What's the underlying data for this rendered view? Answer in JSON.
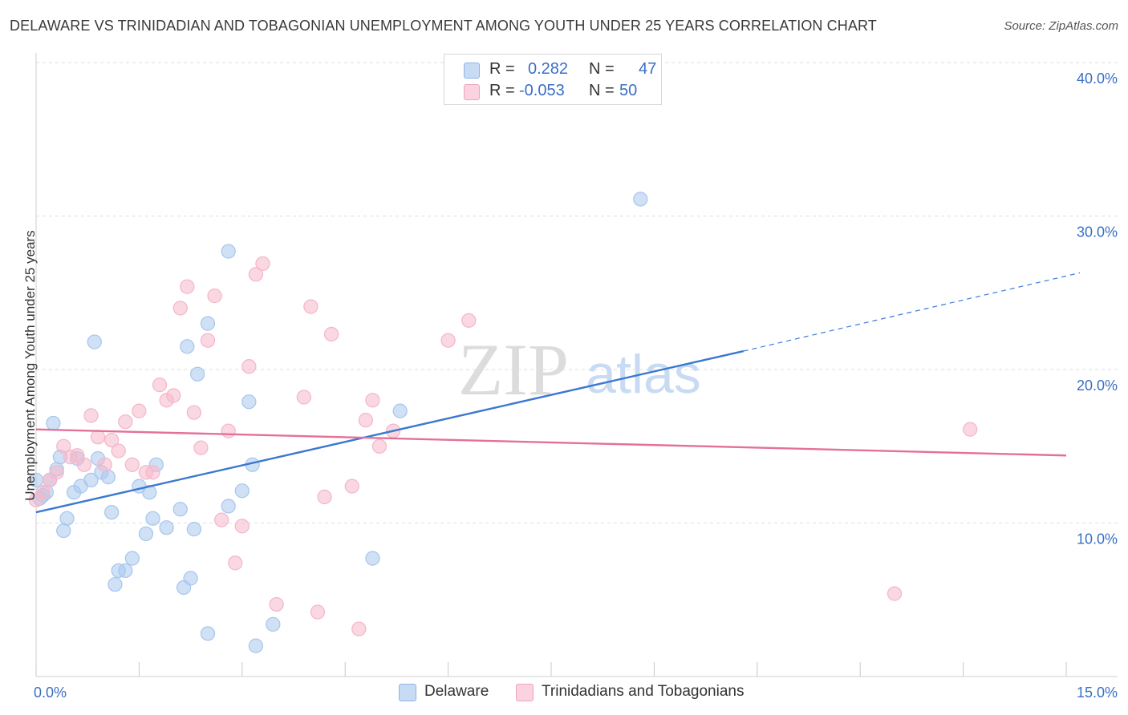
{
  "title": "DELAWARE VS TRINIDADIAN AND TOBAGONIAN UNEMPLOYMENT AMONG YOUTH UNDER 25 YEARS CORRELATION CHART",
  "source": "Source: ZipAtlas.com",
  "watermark": {
    "zip": "ZIP",
    "atlas": "atlas"
  },
  "legend": {
    "rows": [
      {
        "r_label": "R =",
        "r_value": "0.282",
        "n_label": "N =",
        "n_value": "47",
        "color": "#a9c8ee"
      },
      {
        "r_label": "R =",
        "r_value": "-0.053",
        "n_label": "N =",
        "n_value": "50",
        "color": "#f5b8cb"
      }
    ]
  },
  "bottom_legend": [
    {
      "label": "Delaware",
      "color": "#a9c8ee"
    },
    {
      "label": "Trinidadians and Tobagonians",
      "color": "#f5b8cb"
    }
  ],
  "chart_data": {
    "type": "scatter",
    "ylabel": "Unemployment Among Youth under 25 years",
    "xlim": [
      0,
      15
    ],
    "ylim": [
      0,
      40
    ],
    "x_tick_labels": [
      {
        "v": 0,
        "label": "0.0%"
      },
      {
        "v": 15,
        "label": "15.0%"
      }
    ],
    "y_tick_labels": [
      {
        "v": 10,
        "label": "10.0%"
      },
      {
        "v": 20,
        "label": "20.0%"
      },
      {
        "v": 30,
        "label": "30.0%"
      },
      {
        "v": 40,
        "label": "40.0%"
      }
    ],
    "grid": true,
    "series": [
      {
        "name": "Delaware",
        "color": "#3b78d0",
        "fill": "#a9c8ee",
        "trend": {
          "x0": 0,
          "y0": 10.7,
          "x1": 10.3,
          "y1": 21.2,
          "x_end": 15.2,
          "y_end": 26.3,
          "extended_dashed": true
        },
        "points": [
          [
            0.0,
            12.8
          ],
          [
            0.1,
            11.8
          ],
          [
            0.15,
            12.0
          ],
          [
            0.2,
            12.8
          ],
          [
            0.25,
            16.5
          ],
          [
            0.3,
            13.5
          ],
          [
            0.35,
            14.3
          ],
          [
            0.4,
            9.5
          ],
          [
            0.45,
            10.3
          ],
          [
            0.55,
            12.0
          ],
          [
            0.6,
            14.2
          ],
          [
            0.65,
            12.4
          ],
          [
            0.8,
            12.8
          ],
          [
            0.85,
            21.8
          ],
          [
            0.9,
            14.2
          ],
          [
            0.95,
            13.3
          ],
          [
            1.05,
            13.0
          ],
          [
            1.1,
            10.7
          ],
          [
            1.15,
            6.0
          ],
          [
            1.2,
            6.9
          ],
          [
            1.3,
            6.9
          ],
          [
            1.4,
            7.7
          ],
          [
            1.5,
            12.4
          ],
          [
            1.6,
            9.3
          ],
          [
            1.65,
            12.0
          ],
          [
            1.7,
            10.3
          ],
          [
            1.75,
            13.8
          ],
          [
            1.9,
            9.7
          ],
          [
            2.1,
            10.9
          ],
          [
            2.15,
            5.8
          ],
          [
            2.2,
            21.5
          ],
          [
            2.25,
            6.4
          ],
          [
            2.3,
            9.6
          ],
          [
            2.35,
            19.7
          ],
          [
            2.5,
            23.0
          ],
          [
            2.5,
            2.8
          ],
          [
            2.8,
            11.1
          ],
          [
            2.8,
            27.7
          ],
          [
            3.0,
            12.1
          ],
          [
            3.1,
            17.9
          ],
          [
            3.15,
            13.8
          ],
          [
            3.2,
            2.0
          ],
          [
            3.45,
            3.4
          ],
          [
            4.9,
            7.7
          ],
          [
            5.3,
            17.3
          ],
          [
            8.8,
            31.1
          ],
          [
            0.05,
            11.6
          ]
        ]
      },
      {
        "name": "Trinidadians and Tobagonians",
        "color": "#e4709a",
        "fill": "#f5b8cb",
        "trend": {
          "x0": 0,
          "y0": 16.1,
          "x1": 15,
          "y1": 14.4
        },
        "points": [
          [
            0.0,
            11.5
          ],
          [
            0.1,
            12.0
          ],
          [
            0.2,
            12.8
          ],
          [
            0.3,
            13.3
          ],
          [
            0.4,
            15.0
          ],
          [
            0.5,
            14.3
          ],
          [
            0.6,
            14.4
          ],
          [
            0.7,
            13.8
          ],
          [
            0.8,
            17.0
          ],
          [
            0.9,
            15.6
          ],
          [
            1.0,
            13.8
          ],
          [
            1.1,
            15.4
          ],
          [
            1.2,
            14.7
          ],
          [
            1.3,
            16.6
          ],
          [
            1.4,
            13.8
          ],
          [
            1.5,
            17.3
          ],
          [
            1.6,
            13.3
          ],
          [
            1.7,
            13.3
          ],
          [
            1.8,
            19.0
          ],
          [
            1.9,
            18.0
          ],
          [
            2.0,
            18.3
          ],
          [
            2.1,
            24.0
          ],
          [
            2.2,
            25.4
          ],
          [
            2.3,
            17.2
          ],
          [
            2.4,
            14.9
          ],
          [
            2.5,
            21.9
          ],
          [
            2.6,
            24.8
          ],
          [
            2.7,
            10.2
          ],
          [
            2.8,
            16.0
          ],
          [
            2.9,
            7.4
          ],
          [
            3.0,
            9.8
          ],
          [
            3.1,
            20.2
          ],
          [
            3.2,
            26.2
          ],
          [
            3.3,
            26.9
          ],
          [
            3.5,
            4.7
          ],
          [
            3.9,
            18.2
          ],
          [
            4.0,
            24.1
          ],
          [
            4.1,
            4.2
          ],
          [
            4.2,
            11.7
          ],
          [
            4.3,
            22.3
          ],
          [
            4.6,
            12.4
          ],
          [
            4.7,
            3.1
          ],
          [
            4.8,
            16.7
          ],
          [
            4.9,
            18.0
          ],
          [
            5.0,
            15.0
          ],
          [
            5.2,
            16.0
          ],
          [
            6.0,
            21.9
          ],
          [
            6.3,
            23.2
          ],
          [
            12.5,
            5.4
          ],
          [
            13.6,
            16.1
          ]
        ]
      }
    ]
  }
}
